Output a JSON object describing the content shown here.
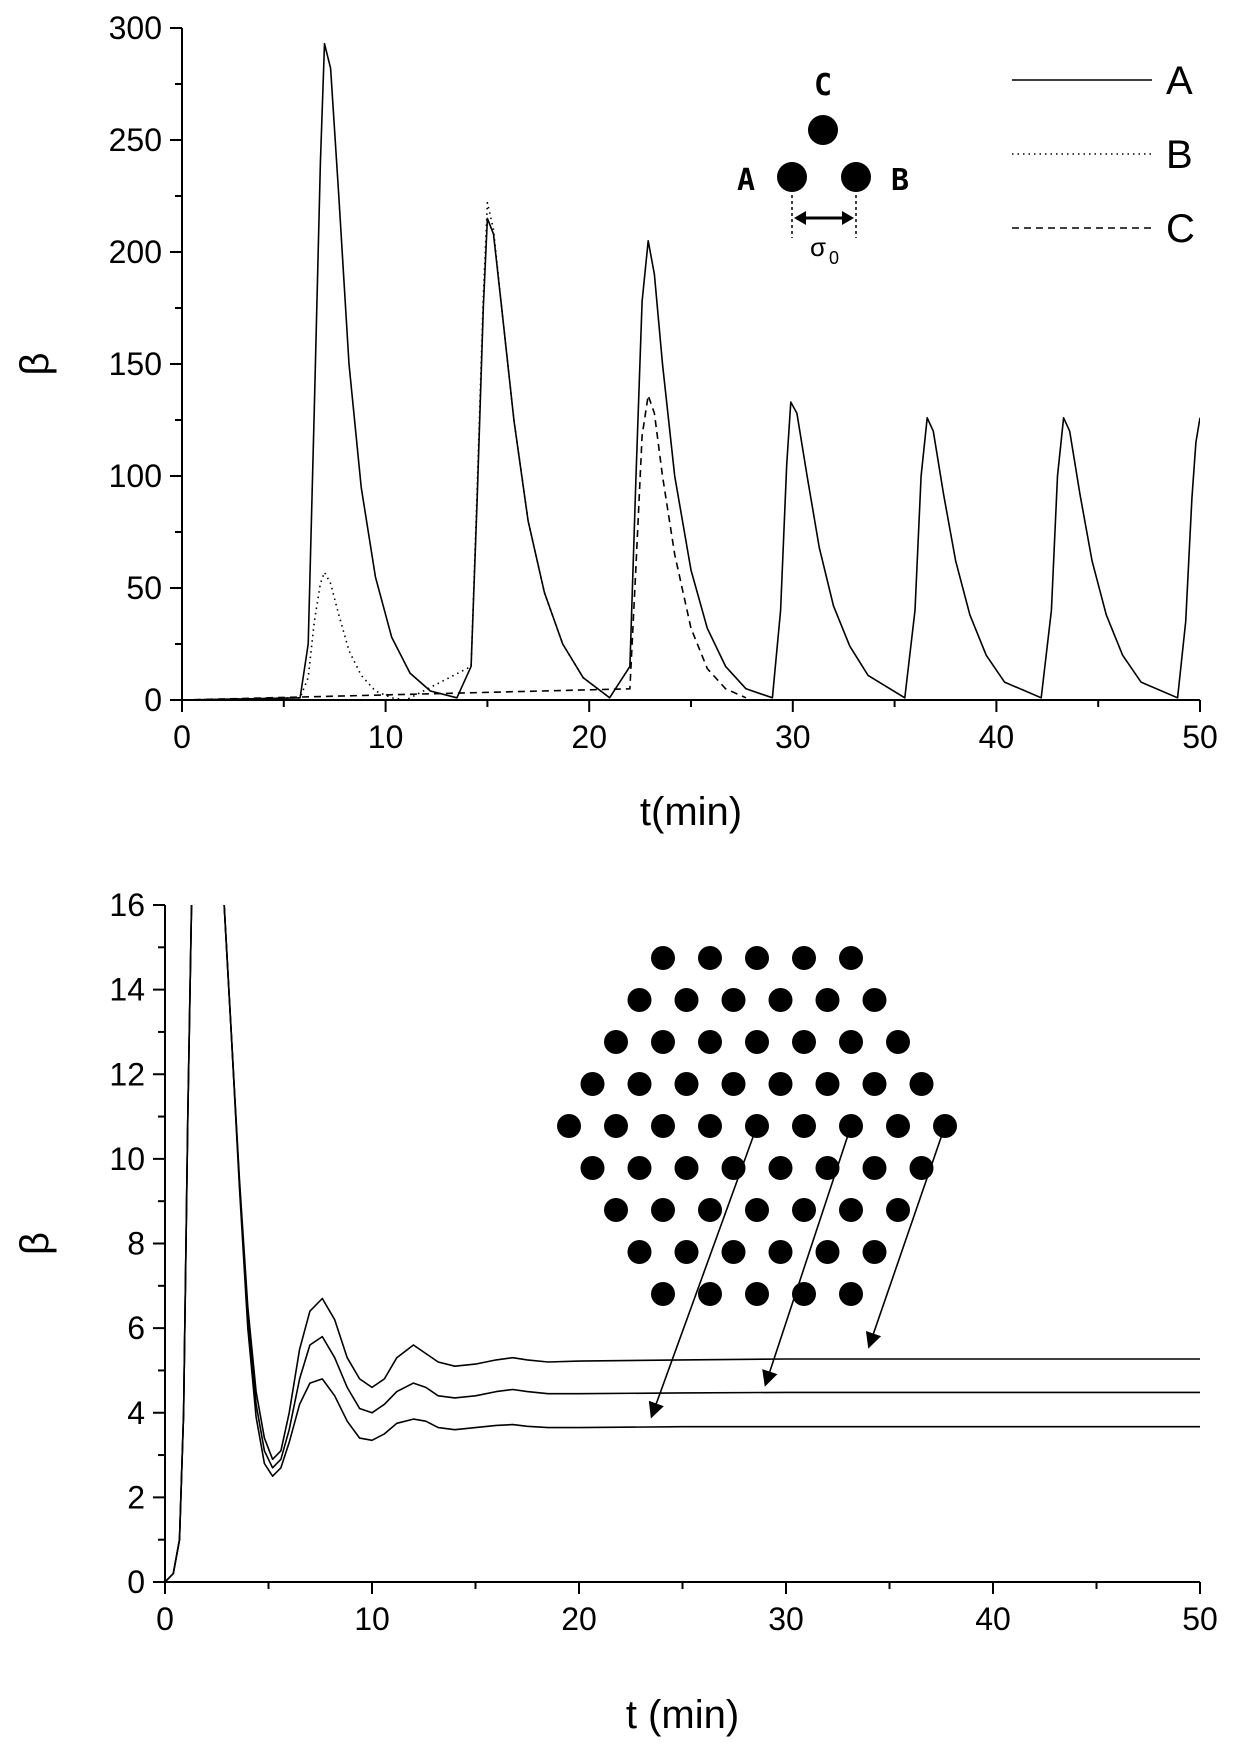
{
  "chart_data": [
    {
      "type": "line",
      "xlabel": "t(min)",
      "ylabel": "β",
      "xlim": [
        0,
        50
      ],
      "ylim": [
        0,
        300
      ],
      "xticks": [
        "0",
        "10",
        "20",
        "30",
        "40",
        "50"
      ],
      "yticks": [
        "0",
        "50",
        "100",
        "150",
        "200",
        "250",
        "300"
      ],
      "grid": false,
      "legend_position": "top-right",
      "series": [
        {
          "name": "A",
          "style": "solid",
          "x": [
            0,
            5.8,
            6.2,
            6.5,
            6.8,
            7.0,
            7.3,
            7.7,
            8.2,
            8.8,
            9.5,
            10.3,
            11.2,
            12.2,
            13.5,
            14.2,
            14.5,
            14.8,
            15.0,
            15.3,
            15.7,
            16.3,
            17.0,
            17.8,
            18.7,
            19.7,
            21.0,
            22.0,
            22.3,
            22.6,
            22.9,
            23.2,
            23.6,
            24.2,
            25.0,
            25.8,
            26.7,
            27.7,
            29.0,
            29.4,
            29.7,
            29.9,
            30.2,
            30.7,
            31.3,
            32.0,
            32.8,
            33.7,
            35.5,
            36.0,
            36.3,
            36.6,
            36.9,
            37.4,
            38.0,
            38.7,
            39.5,
            40.4,
            42.2,
            42.7,
            43.0,
            43.3,
            43.6,
            44.1,
            44.7,
            45.4,
            46.2,
            47.1,
            48.9,
            49.3,
            49.6,
            49.8,
            50.0
          ],
          "y": [
            0,
            1,
            25,
            130,
            240,
            293,
            282,
            225,
            150,
            95,
            55,
            28,
            12,
            4,
            1,
            15,
            90,
            175,
            215,
            208,
            175,
            125,
            80,
            48,
            25,
            10,
            1,
            15,
            100,
            178,
            205,
            190,
            150,
            100,
            58,
            32,
            15,
            5,
            1,
            40,
            105,
            133,
            128,
            100,
            68,
            42,
            24,
            11,
            1,
            40,
            100,
            126,
            120,
            92,
            62,
            38,
            20,
            8,
            1,
            40,
            100,
            126,
            120,
            92,
            62,
            38,
            20,
            8,
            1,
            35,
            90,
            115,
            126
          ]
        },
        {
          "name": "B",
          "style": "dotted",
          "x": [
            0,
            5.8,
            6.2,
            6.5,
            6.8,
            7.0,
            7.3,
            7.7,
            8.2,
            8.8,
            9.5,
            10.3,
            11.0,
            14.2,
            14.5,
            14.8,
            15.0,
            15.3,
            15.7,
            16.3,
            17.0,
            17.8,
            18.7,
            19.7,
            21.0
          ],
          "y": [
            0,
            1,
            10,
            35,
            52,
            57,
            52,
            38,
            22,
            11,
            4,
            1,
            0,
            15,
            95,
            180,
            222,
            210,
            175,
            125,
            80,
            48,
            25,
            10,
            1
          ]
        },
        {
          "name": "C",
          "style": "dashed",
          "x": [
            0,
            22.0,
            22.3,
            22.6,
            22.9,
            23.2,
            23.6,
            24.2,
            25.0,
            25.8,
            26.7,
            27.7
          ],
          "y": [
            0,
            5,
            60,
            118,
            136,
            128,
            100,
            65,
            32,
            14,
            5,
            1
          ]
        }
      ],
      "inset": {
        "labels": [
          "A",
          "B",
          "C"
        ],
        "distance_label": "σ",
        "distance_subscript": "0"
      }
    },
    {
      "type": "line",
      "xlabel": "t (min)",
      "ylabel": "β",
      "xlim": [
        0,
        50
      ],
      "ylim": [
        0,
        16
      ],
      "xticks": [
        "0",
        "10",
        "20",
        "30",
        "40",
        "50"
      ],
      "yticks": [
        "0",
        "2",
        "4",
        "6",
        "8",
        "10",
        "12",
        "14",
        "16"
      ],
      "grid": false,
      "series": [
        {
          "style": "solid",
          "x": [
            0,
            0.4,
            0.7,
            0.9,
            1.1,
            1.3,
            2.8,
            3.2,
            3.6,
            4.0,
            4.4,
            4.8,
            5.2,
            5.6,
            6.0,
            6.5,
            7.0,
            7.6,
            8.2,
            8.8,
            9.4,
            10.0,
            10.6,
            11.2,
            12.0,
            12.6,
            13.2,
            14.0,
            15.0,
            16.0,
            16.8,
            17.5,
            18.5,
            20,
            25,
            30,
            50
          ],
          "y": [
            0,
            0.2,
            1.0,
            4.0,
            11.0,
            16.5,
            16.5,
            13.0,
            9.5,
            6.5,
            4.5,
            3.4,
            2.9,
            3.1,
            4.0,
            5.5,
            6.4,
            6.7,
            6.2,
            5.3,
            4.8,
            4.6,
            4.8,
            5.3,
            5.6,
            5.4,
            5.2,
            5.1,
            5.15,
            5.25,
            5.3,
            5.25,
            5.2,
            5.22,
            5.25,
            5.27,
            5.27
          ]
        },
        {
          "style": "solid",
          "x": [
            0,
            0.4,
            0.7,
            0.9,
            1.1,
            1.3,
            2.8,
            3.2,
            3.6,
            4.0,
            4.4,
            4.8,
            5.2,
            5.6,
            6.0,
            6.5,
            7.0,
            7.6,
            8.2,
            8.8,
            9.4,
            10.0,
            10.6,
            11.2,
            12.0,
            12.6,
            13.2,
            14.0,
            15.0,
            16.0,
            16.8,
            17.5,
            18.5,
            20,
            25,
            30,
            50
          ],
          "y": [
            0,
            0.2,
            1.0,
            4.0,
            11.0,
            16.5,
            16.5,
            13.0,
            9.4,
            6.3,
            4.2,
            3.1,
            2.7,
            2.9,
            3.6,
            4.8,
            5.6,
            5.8,
            5.3,
            4.6,
            4.1,
            4.0,
            4.2,
            4.5,
            4.7,
            4.6,
            4.4,
            4.35,
            4.4,
            4.5,
            4.55,
            4.5,
            4.45,
            4.45,
            4.47,
            4.48,
            4.48
          ]
        },
        {
          "style": "solid",
          "x": [
            0,
            0.4,
            0.7,
            0.9,
            1.1,
            1.3,
            2.8,
            3.2,
            3.6,
            4.0,
            4.4,
            4.8,
            5.2,
            5.6,
            6.0,
            6.5,
            7.0,
            7.6,
            8.2,
            8.8,
            9.4,
            10.0,
            10.6,
            11.2,
            12.0,
            12.6,
            13.2,
            14.0,
            15.0,
            16.0,
            16.8,
            17.5,
            18.5,
            20,
            25,
            30,
            50
          ],
          "y": [
            0,
            0.2,
            1.0,
            4.0,
            11.0,
            16.5,
            16.5,
            13.0,
            9.3,
            6.0,
            3.9,
            2.8,
            2.5,
            2.7,
            3.3,
            4.2,
            4.7,
            4.8,
            4.4,
            3.8,
            3.4,
            3.35,
            3.5,
            3.75,
            3.85,
            3.8,
            3.65,
            3.6,
            3.65,
            3.7,
            3.72,
            3.68,
            3.65,
            3.65,
            3.67,
            3.67,
            3.67
          ]
        }
      ],
      "inset": {
        "type": "hexagonal-lattice",
        "rows": [
          5,
          6,
          7,
          8,
          9,
          8,
          7,
          6,
          5
        ]
      }
    }
  ]
}
